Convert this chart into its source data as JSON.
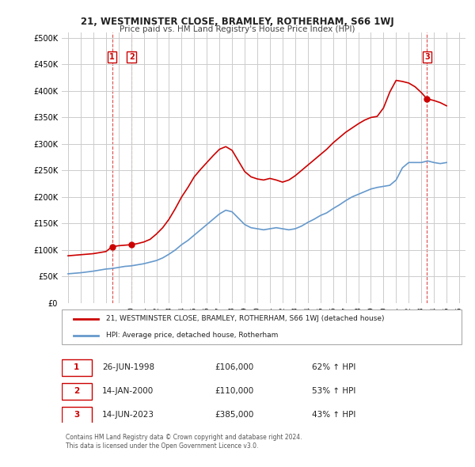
{
  "title": "21, WESTMINSTER CLOSE, BRAMLEY, ROTHERHAM, S66 1WJ",
  "subtitle": "Price paid vs. HM Land Registry's House Price Index (HPI)",
  "ylabel_ticks": [
    "£0",
    "£50K",
    "£100K",
    "£150K",
    "£200K",
    "£250K",
    "£300K",
    "£350K",
    "£400K",
    "£450K",
    "£500K"
  ],
  "ytick_values": [
    0,
    50000,
    100000,
    150000,
    200000,
    250000,
    300000,
    350000,
    400000,
    450000,
    500000
  ],
  "ylim": [
    0,
    510000
  ],
  "xlim_start": 1994.5,
  "xlim_end": 2026.5,
  "xticks": [
    1995,
    1996,
    1997,
    1998,
    1999,
    2000,
    2001,
    2002,
    2003,
    2004,
    2005,
    2006,
    2007,
    2008,
    2009,
    2010,
    2011,
    2012,
    2013,
    2014,
    2015,
    2016,
    2017,
    2018,
    2019,
    2020,
    2021,
    2022,
    2023,
    2024,
    2025,
    2026
  ],
  "sale_dates": [
    1998.49,
    2000.04,
    2023.45
  ],
  "sale_prices": [
    106000,
    110000,
    385000
  ],
  "sale_labels": [
    "1",
    "2",
    "3"
  ],
  "sale_color": "#cc0000",
  "hpi_color": "#6699cc",
  "legend_label_red": "21, WESTMINSTER CLOSE, BRAMLEY, ROTHERHAM, S66 1WJ (detached house)",
  "legend_label_blue": "HPI: Average price, detached house, Rotherham",
  "table_entries": [
    {
      "num": "1",
      "date": "26-JUN-1998",
      "price": "£106,000",
      "pct": "62% ↑ HPI"
    },
    {
      "num": "2",
      "date": "14-JAN-2000",
      "price": "£110,000",
      "pct": "53% ↑ HPI"
    },
    {
      "num": "3",
      "date": "14-JUN-2023",
      "price": "£385,000",
      "pct": "43% ↑ HPI"
    }
  ],
  "footer": "Contains HM Land Registry data © Crown copyright and database right 2024.\nThis data is licensed under the Open Government Licence v3.0.",
  "background_color": "#ffffff",
  "grid_color": "#cccccc",
  "hpi_years": [
    1995,
    1995.5,
    1996,
    1996.5,
    1997,
    1997.5,
    1998,
    1998.5,
    1999,
    1999.5,
    2000,
    2000.5,
    2001,
    2001.5,
    2002,
    2002.5,
    2003,
    2003.5,
    2004,
    2004.5,
    2005,
    2005.5,
    2006,
    2006.5,
    2007,
    2007.5,
    2008,
    2008.5,
    2009,
    2009.5,
    2010,
    2010.5,
    2011,
    2011.5,
    2012,
    2012.5,
    2013,
    2013.5,
    2014,
    2014.5,
    2015,
    2015.5,
    2016,
    2016.5,
    2017,
    2017.5,
    2018,
    2018.5,
    2019,
    2019.5,
    2020,
    2020.5,
    2021,
    2021.5,
    2022,
    2022.5,
    2023,
    2023.5,
    2024,
    2024.5,
    2025
  ],
  "hpi_values": [
    55000,
    56000,
    57000,
    58500,
    60000,
    62000,
    64000,
    65000,
    67000,
    69000,
    70000,
    72000,
    74000,
    77000,
    80000,
    85000,
    92000,
    100000,
    110000,
    118000,
    128000,
    138000,
    148000,
    158000,
    168000,
    175000,
    172000,
    160000,
    148000,
    142000,
    140000,
    138000,
    140000,
    142000,
    140000,
    138000,
    140000,
    145000,
    152000,
    158000,
    165000,
    170000,
    178000,
    185000,
    193000,
    200000,
    205000,
    210000,
    215000,
    218000,
    220000,
    222000,
    232000,
    255000,
    265000,
    265000,
    265000,
    268000,
    265000,
    263000,
    265000
  ],
  "red_years": [
    1995,
    1995.5,
    1996,
    1996.5,
    1997,
    1997.5,
    1998,
    1998.49,
    1998.5,
    1999,
    1999.5,
    2000,
    2000.04,
    2000.5,
    2001,
    2001.5,
    2002,
    2002.5,
    2003,
    2003.5,
    2004,
    2004.5,
    2005,
    2005.5,
    2006,
    2006.5,
    2007,
    2007.5,
    2008,
    2008.5,
    2009,
    2009.5,
    2010,
    2010.5,
    2011,
    2011.5,
    2012,
    2012.5,
    2013,
    2013.5,
    2014,
    2014.5,
    2015,
    2015.5,
    2016,
    2016.5,
    2017,
    2017.5,
    2018,
    2018.5,
    2019,
    2019.5,
    2020,
    2020.5,
    2021,
    2021.5,
    2022,
    2022.5,
    2023,
    2023.45,
    2023.5,
    2024,
    2024.5,
    2025
  ],
  "red_values": [
    89000,
    90000,
    91000,
    92000,
    93000,
    95000,
    97000,
    106000,
    106000,
    108000,
    109000,
    110000,
    110000,
    112000,
    115000,
    120000,
    130000,
    142000,
    158000,
    178000,
    200000,
    218000,
    238000,
    252000,
    265000,
    278000,
    290000,
    295000,
    288000,
    268000,
    248000,
    238000,
    234000,
    232000,
    235000,
    232000,
    228000,
    232000,
    240000,
    250000,
    260000,
    270000,
    280000,
    290000,
    302000,
    312000,
    322000,
    330000,
    338000,
    345000,
    350000,
    352000,
    368000,
    398000,
    420000,
    418000,
    415000,
    408000,
    397000,
    385000,
    385000,
    382000,
    378000,
    372000
  ]
}
